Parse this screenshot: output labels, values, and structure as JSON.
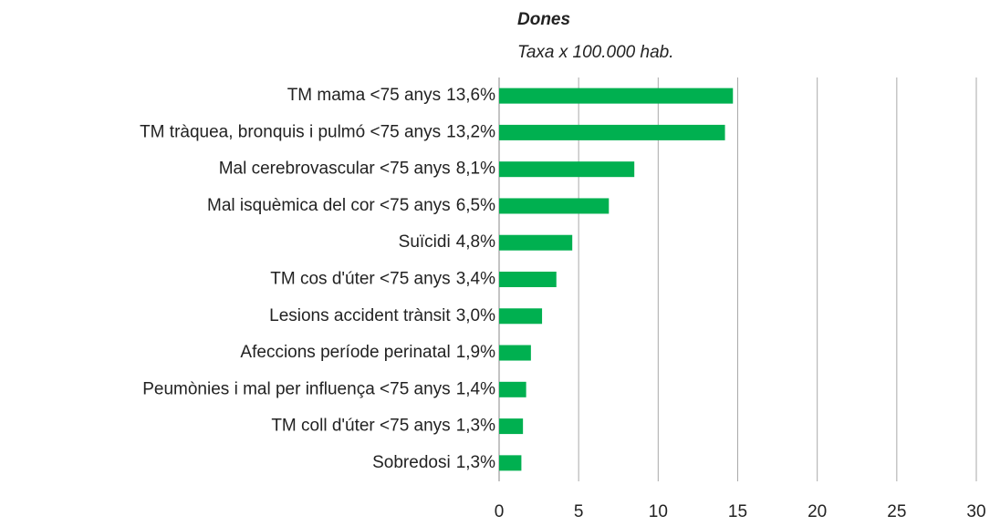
{
  "chart_data": {
    "type": "barh",
    "title": "Dones",
    "subtitle": "Taxa x 100.000 hab.",
    "categories": [
      "TM mama <75 anys",
      "TM tràquea, bronquis i pulmó <75 anys",
      "Mal cerebrovascular <75 anys",
      "Mal isquèmica del cor <75 anys",
      "Suïcidi",
      "TM cos d'úter <75 anys",
      "Lesions accident trànsit",
      "Afeccions període perinatal",
      "Peumònies i mal per influença <75 anys",
      "TM coll d'úter <75 anys",
      "Sobredosi"
    ],
    "shares": [
      "13,6%",
      "13,2%",
      "8,1%",
      "6,5%",
      "4,8%",
      "3,4%",
      "3,0%",
      "1,9%",
      "1,4%",
      "1,3%",
      "1,3%"
    ],
    "values": [
      14.7,
      14.2,
      8.5,
      6.9,
      4.6,
      3.6,
      2.7,
      2.0,
      1.7,
      1.5,
      1.4
    ],
    "color": "#00b050",
    "xlim": [
      0,
      30
    ],
    "xticks": [
      0,
      5,
      10,
      15,
      20,
      25,
      30
    ],
    "grid": true
  }
}
